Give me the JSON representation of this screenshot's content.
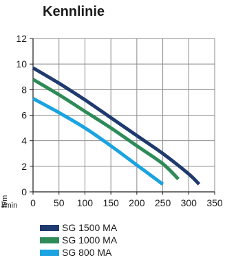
{
  "chart_data": {
    "type": "line",
    "title": "Kennlinie",
    "xunit": "l/min",
    "yunit": "h/m",
    "xlim": [
      0,
      350
    ],
    "ylim": [
      0,
      12
    ],
    "xticks": [
      0,
      50,
      100,
      150,
      200,
      250,
      300,
      350
    ],
    "yticks": [
      0,
      2,
      4,
      6,
      8,
      10,
      12
    ],
    "grid": true,
    "legend_position": "bottom",
    "series": [
      {
        "name": "SG 1500 MA",
        "color": "#1f3a6e",
        "x": [
          0,
          50,
          100,
          150,
          200,
          250,
          300,
          320
        ],
        "y": [
          9.7,
          8.5,
          7.2,
          5.8,
          4.4,
          3.0,
          1.4,
          0.6
        ]
      },
      {
        "name": "SG 1000 MA",
        "color": "#2e8b57",
        "x": [
          0,
          50,
          100,
          150,
          200,
          250,
          280
        ],
        "y": [
          8.8,
          7.6,
          6.3,
          5.0,
          3.6,
          2.2,
          1.0
        ]
      },
      {
        "name": "SG 800 MA",
        "color": "#1aa3e0",
        "x": [
          0,
          50,
          100,
          150,
          200,
          250
        ],
        "y": [
          7.3,
          6.2,
          5.0,
          3.6,
          2.1,
          0.6
        ]
      }
    ]
  }
}
